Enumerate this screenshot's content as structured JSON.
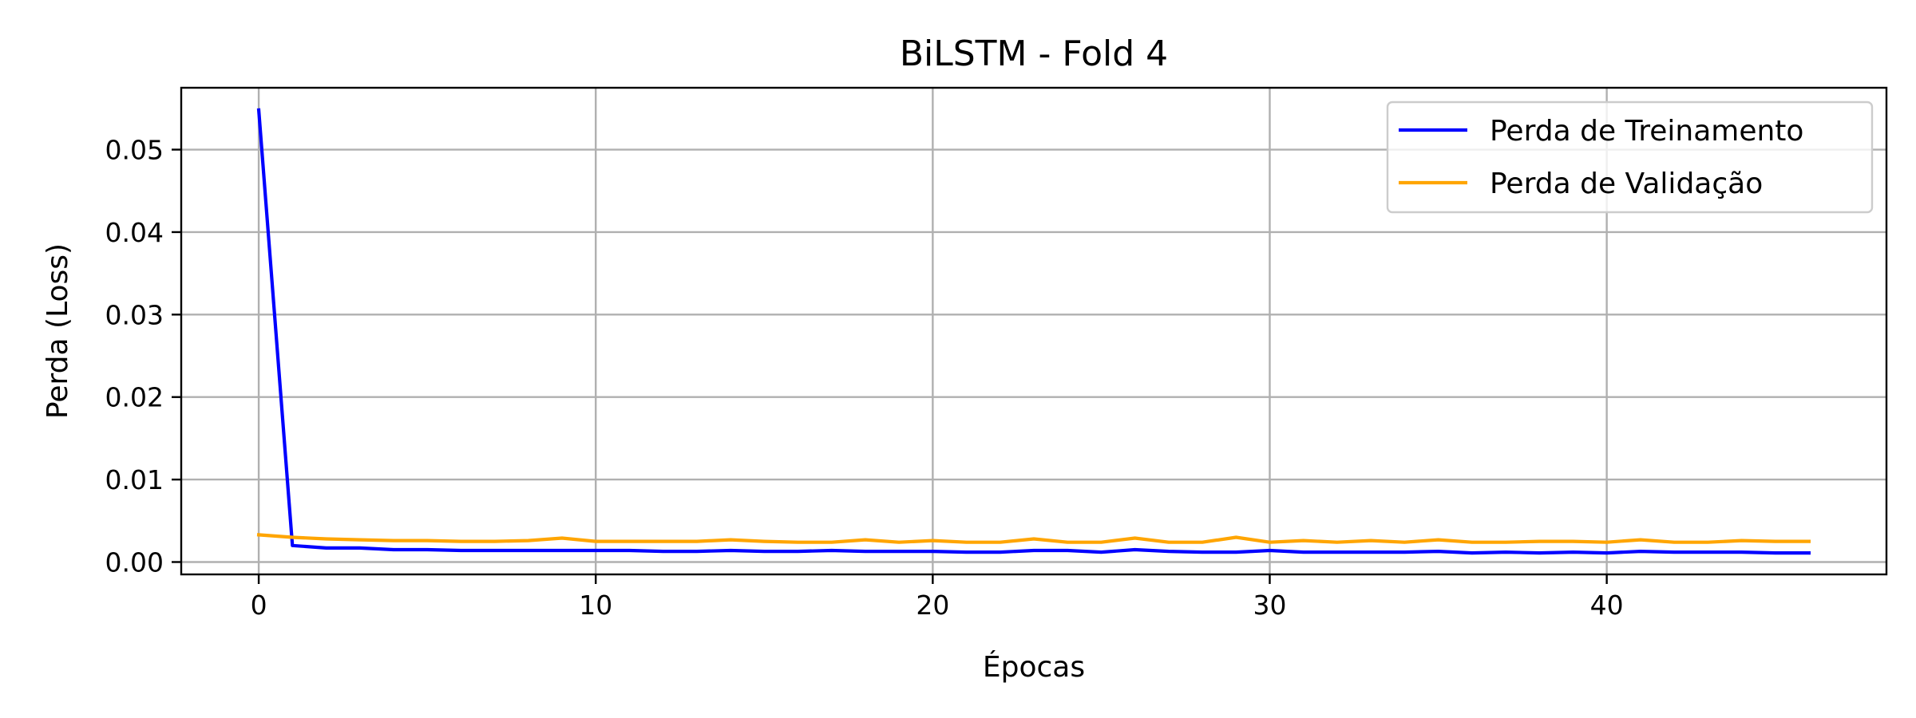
{
  "chart_data": {
    "type": "line",
    "title": "BiLSTM - Fold 4",
    "xlabel": "Épocas",
    "ylabel": "Perda (Loss)",
    "xlim": [
      -2.3,
      48.3
    ],
    "ylim": [
      -0.0015,
      0.0575
    ],
    "xticks": [
      0,
      10,
      20,
      30,
      40
    ],
    "xtick_labels": [
      "0",
      "10",
      "20",
      "30",
      "40"
    ],
    "yticks": [
      0.0,
      0.01,
      0.02,
      0.03,
      0.04,
      0.05
    ],
    "ytick_labels": [
      "0.00",
      "0.01",
      "0.02",
      "0.03",
      "0.04",
      "0.05"
    ],
    "grid": true,
    "legend_position": "top-right",
    "series": [
      {
        "name": "Perda de Treinamento",
        "color": "#0000ff",
        "x": [
          0,
          1,
          2,
          3,
          4,
          5,
          6,
          7,
          8,
          9,
          10,
          11,
          12,
          13,
          14,
          15,
          16,
          17,
          18,
          19,
          20,
          21,
          22,
          23,
          24,
          25,
          26,
          27,
          28,
          29,
          30,
          31,
          32,
          33,
          34,
          35,
          36,
          37,
          38,
          39,
          40,
          41,
          42,
          43,
          44,
          45,
          46
        ],
        "values": [
          0.0548,
          0.002,
          0.0017,
          0.0017,
          0.0015,
          0.0015,
          0.0014,
          0.0014,
          0.0014,
          0.0014,
          0.0014,
          0.0014,
          0.0013,
          0.0013,
          0.0014,
          0.0013,
          0.0013,
          0.0014,
          0.0013,
          0.0013,
          0.0013,
          0.0012,
          0.0012,
          0.0014,
          0.0014,
          0.0012,
          0.0015,
          0.0013,
          0.0012,
          0.0012,
          0.0014,
          0.0012,
          0.0012,
          0.0012,
          0.0012,
          0.0013,
          0.0011,
          0.0012,
          0.0011,
          0.0012,
          0.0011,
          0.0013,
          0.0012,
          0.0012,
          0.0012,
          0.0011,
          0.0011
        ]
      },
      {
        "name": "Perda de Validação",
        "color": "#ffa500",
        "x": [
          0,
          1,
          2,
          3,
          4,
          5,
          6,
          7,
          8,
          9,
          10,
          11,
          12,
          13,
          14,
          15,
          16,
          17,
          18,
          19,
          20,
          21,
          22,
          23,
          24,
          25,
          26,
          27,
          28,
          29,
          30,
          31,
          32,
          33,
          34,
          35,
          36,
          37,
          38,
          39,
          40,
          41,
          42,
          43,
          44,
          45,
          46
        ],
        "values": [
          0.0033,
          0.003,
          0.0028,
          0.0027,
          0.0026,
          0.0026,
          0.0025,
          0.0025,
          0.0026,
          0.0029,
          0.0025,
          0.0025,
          0.0025,
          0.0025,
          0.0027,
          0.0025,
          0.0024,
          0.0024,
          0.0027,
          0.0024,
          0.0026,
          0.0024,
          0.0024,
          0.0028,
          0.0024,
          0.0024,
          0.0029,
          0.0024,
          0.0024,
          0.003,
          0.0024,
          0.0026,
          0.0024,
          0.0026,
          0.0024,
          0.0027,
          0.0024,
          0.0024,
          0.0025,
          0.0025,
          0.0024,
          0.0027,
          0.0024,
          0.0024,
          0.0026,
          0.0025,
          0.0025
        ]
      }
    ]
  }
}
